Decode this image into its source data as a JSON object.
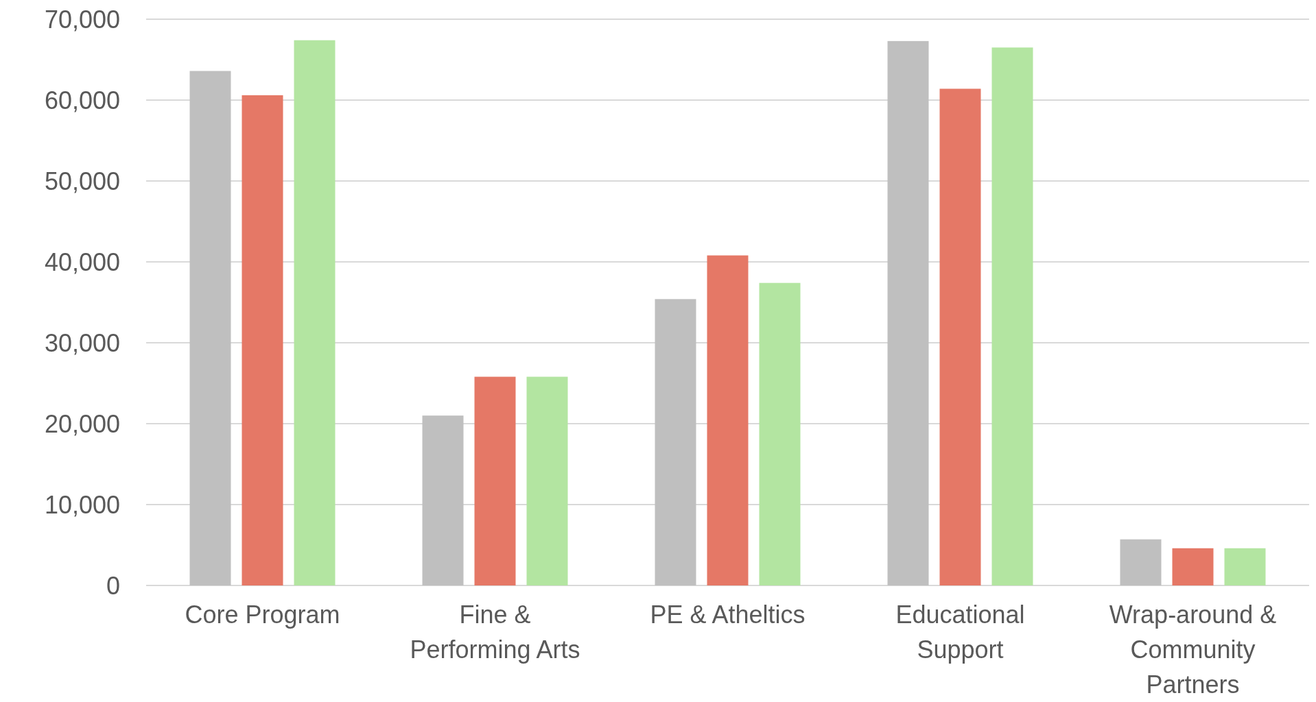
{
  "chart_data": {
    "type": "bar",
    "categories": [
      "Core Program",
      "Fine & Performing Arts",
      "PE & Atheltics",
      "Educational Support",
      "Wrap-around & Community Partners"
    ],
    "series": [
      {
        "color": "#bfbfbf",
        "values": [
          63600,
          21000,
          35400,
          67300,
          5700
        ]
      },
      {
        "color": "#e57866",
        "values": [
          60600,
          25800,
          40800,
          61400,
          4600
        ]
      },
      {
        "color": "#b3e5a1",
        "values": [
          67400,
          25800,
          37400,
          66500,
          4600
        ]
      }
    ],
    "ylim": [
      0,
      70000
    ],
    "yticks": [
      {
        "value": 0,
        "label": "0"
      },
      {
        "value": 10000,
        "label": "10,000"
      },
      {
        "value": 20000,
        "label": "20,000"
      },
      {
        "value": 30000,
        "label": "30,000"
      },
      {
        "value": 40000,
        "label": "40,000"
      },
      {
        "value": 50000,
        "label": "50,000"
      },
      {
        "value": 60000,
        "label": "60,000"
      },
      {
        "value": 70000,
        "label": "70,000"
      }
    ],
    "grid": "y"
  }
}
